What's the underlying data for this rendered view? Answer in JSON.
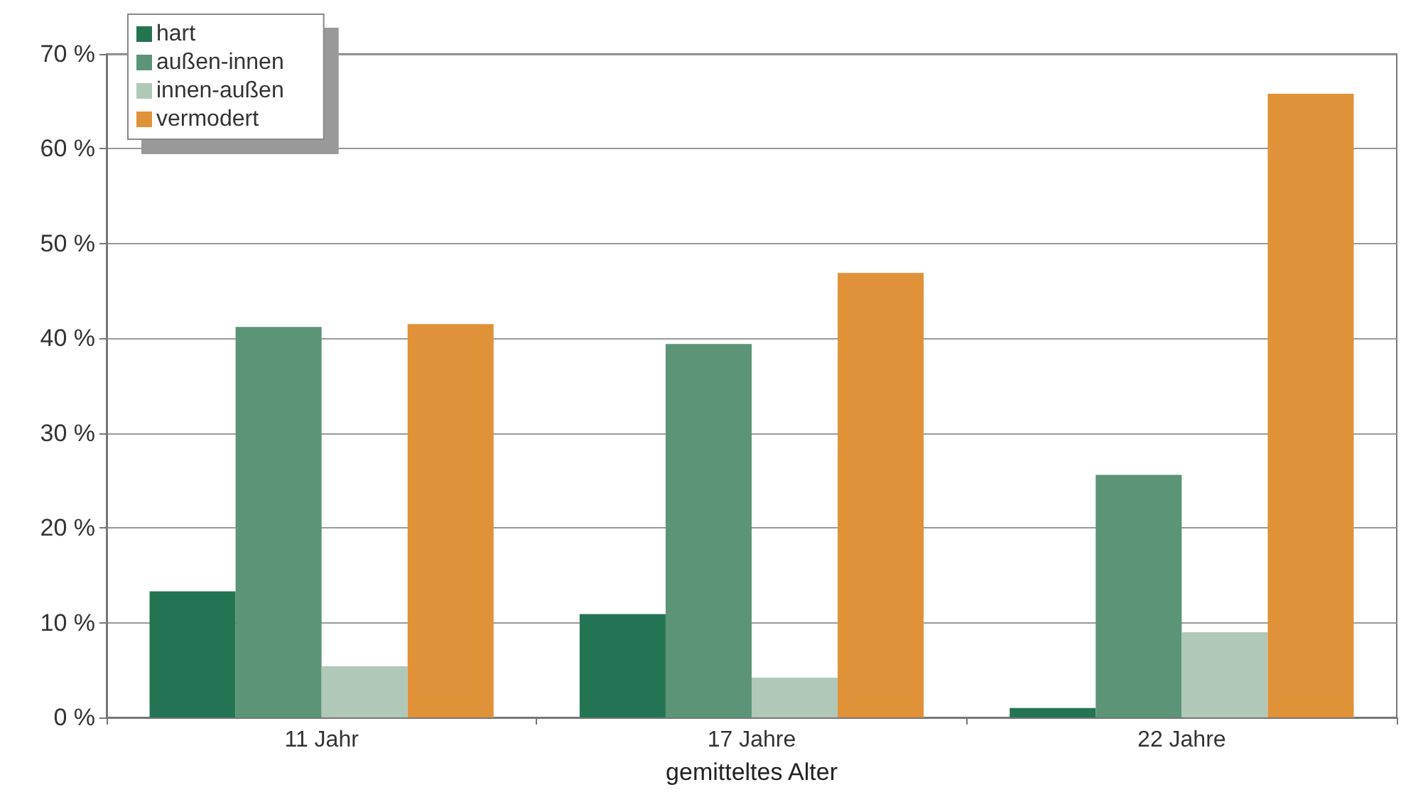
{
  "chart_data": {
    "type": "bar",
    "xlabel": "gemitteltes Alter",
    "categories": [
      "11 Jahr",
      "17 Jahre",
      "22 Jahre"
    ],
    "series": [
      {
        "name": "hart",
        "color": "#237452",
        "values": [
          13.3,
          10.9,
          1.0
        ]
      },
      {
        "name": "außen-innen",
        "color": "#5c9478",
        "values": [
          41.2,
          39.4,
          25.6
        ]
      },
      {
        "name": "innen-außen",
        "color": "#afc8b8",
        "values": [
          5.4,
          4.2,
          9.0
        ]
      },
      {
        "name": "vermodert",
        "color": "#e09238",
        "values": [
          41.5,
          46.9,
          65.8
        ]
      }
    ],
    "ylim": [
      0,
      70
    ],
    "yticks": [
      {
        "value": 0,
        "label": "0 %"
      },
      {
        "value": 10,
        "label": "10 %"
      },
      {
        "value": 20,
        "label": "20 %"
      },
      {
        "value": 30,
        "label": "30 %"
      },
      {
        "value": 40,
        "label": "40 %"
      },
      {
        "value": 50,
        "label": "50 %"
      },
      {
        "value": 60,
        "label": "60 %"
      },
      {
        "value": 70,
        "label": "70 %"
      }
    ],
    "grid": "y",
    "legend": "top left"
  }
}
